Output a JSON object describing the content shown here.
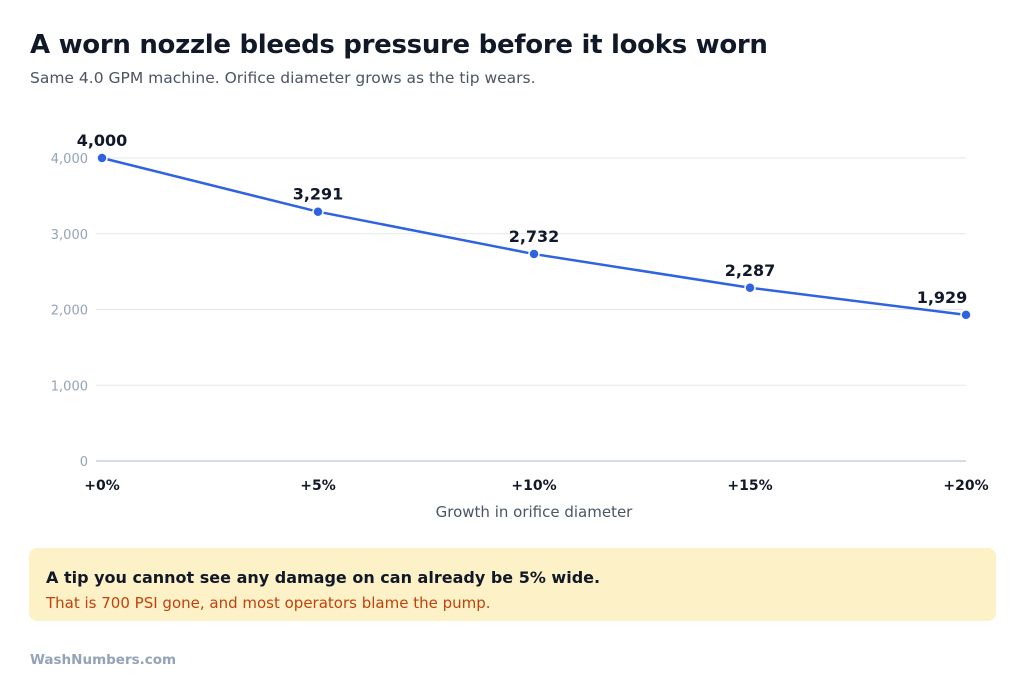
{
  "header": {
    "title": "A worn nozzle bleeds pressure before it looks worn",
    "subtitle": "Same 4.0 GPM machine. Orifice diameter grows as the tip wears."
  },
  "chart_data": {
    "type": "line",
    "categories": [
      "+0%",
      "+5%",
      "+10%",
      "+15%",
      "+20%"
    ],
    "values": [
      4000,
      3291,
      2732,
      2287,
      1929
    ],
    "data_labels": [
      "4,000",
      "3,291",
      "2,732",
      "2,287",
      "1,929"
    ],
    "xlabel": "Growth in orifice diameter",
    "ylabel": "",
    "ylim": [
      0,
      4000
    ],
    "yticks": [
      0,
      1000,
      2000,
      3000,
      4000
    ],
    "ytick_labels": [
      "0",
      "1,000",
      "2,000",
      "3,000",
      "4,000"
    ],
    "grid": true,
    "line_color": "#2f63e0",
    "grid_color": "#e5e7eb",
    "axis_color": "#c7d0db"
  },
  "callout": {
    "headline": "A tip you cannot see any damage on can already be 5% wide.",
    "body": "That is 700 PSI gone, and most operators blame the pump.",
    "background": "#fdf1c7",
    "body_color": "#c2410c"
  },
  "footer": {
    "brand": "WashNumbers.com"
  }
}
